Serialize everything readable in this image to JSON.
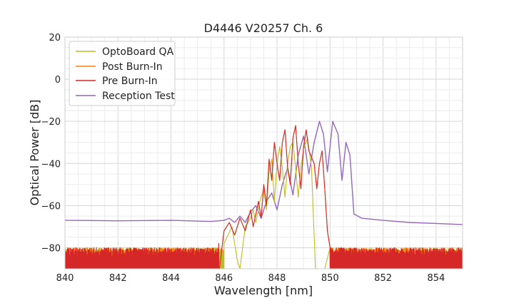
{
  "chart_data": {
    "type": "line",
    "title": "D4446 V20257 Ch. 6",
    "xlabel": "Wavelength [nm]",
    "ylabel": "Optical Power [dB]",
    "xlim": [
      840,
      855
    ],
    "ylim": [
      -90,
      20
    ],
    "xticks": [
      840,
      842,
      844,
      846,
      848,
      850,
      852,
      854
    ],
    "yticks": [
      -80,
      -60,
      -40,
      -20,
      0,
      20
    ],
    "xtick_labels": [
      "840",
      "842",
      "844",
      "846",
      "848",
      "850",
      "852",
      "854"
    ],
    "ytick_labels": [
      "−80",
      "−60",
      "−40",
      "−20",
      "0",
      "20"
    ],
    "grid": true,
    "legend_position": "top-left",
    "series": [
      {
        "name": "OptoBoard QA",
        "color": "#bcbd22",
        "noise_floor_level": -80,
        "points": [
          [
            846.0,
            -78
          ],
          [
            846.3,
            -70
          ],
          [
            846.5,
            -86
          ],
          [
            846.6,
            -90
          ],
          [
            846.8,
            -70
          ],
          [
            847.0,
            -66
          ],
          [
            847.1,
            -62
          ],
          [
            847.2,
            -68
          ],
          [
            847.35,
            -58
          ],
          [
            847.5,
            -52
          ],
          [
            847.6,
            -62
          ],
          [
            847.7,
            -44
          ],
          [
            847.8,
            -38
          ],
          [
            847.9,
            -58
          ],
          [
            848.0,
            -40
          ],
          [
            848.1,
            -32
          ],
          [
            848.2,
            -42
          ],
          [
            848.3,
            -56
          ],
          [
            848.4,
            -40
          ],
          [
            848.5,
            -32
          ],
          [
            848.6,
            -30
          ],
          [
            848.7,
            -42
          ],
          [
            848.8,
            -56
          ],
          [
            848.9,
            -42
          ],
          [
            849.0,
            -33
          ],
          [
            849.15,
            -28
          ],
          [
            849.3,
            -42
          ],
          [
            849.45,
            -90
          ],
          [
            849.8,
            -90
          ],
          [
            850.0,
            -80
          ]
        ]
      },
      {
        "name": "Post Burn-In",
        "color": "#ff7f0e",
        "noise_floor_level": -80,
        "points": [
          [
            845.8,
            -78
          ],
          [
            846.0,
            -72
          ],
          [
            846.2,
            -68
          ],
          [
            846.4,
            -74
          ],
          [
            846.6,
            -66
          ],
          [
            846.8,
            -72
          ],
          [
            847.0,
            -62
          ],
          [
            847.1,
            -70
          ],
          [
            847.3,
            -58
          ],
          [
            847.4,
            -66
          ],
          [
            847.5,
            -50
          ],
          [
            847.6,
            -60
          ],
          [
            847.7,
            -38
          ],
          [
            847.8,
            -48
          ],
          [
            847.9,
            -30
          ],
          [
            848.0,
            -40
          ],
          [
            848.1,
            -48
          ],
          [
            848.2,
            -30
          ],
          [
            848.3,
            -24
          ],
          [
            848.4,
            -42
          ],
          [
            848.5,
            -50
          ],
          [
            848.6,
            -28
          ],
          [
            848.7,
            -22
          ],
          [
            848.8,
            -40
          ],
          [
            848.9,
            -52
          ],
          [
            849.0,
            -32
          ],
          [
            849.1,
            -24
          ],
          [
            849.2,
            -34
          ],
          [
            849.4,
            -40
          ],
          [
            849.5,
            -52
          ],
          [
            849.6,
            -40
          ],
          [
            849.7,
            -34
          ],
          [
            849.8,
            -52
          ],
          [
            849.9,
            -72
          ],
          [
            850.0,
            -80
          ]
        ]
      },
      {
        "name": "Pre Burn-In",
        "color": "#d62728",
        "noise_floor_level": -80,
        "points": [
          [
            845.8,
            -78
          ],
          [
            846.0,
            -72
          ],
          [
            846.2,
            -68
          ],
          [
            846.4,
            -74
          ],
          [
            846.6,
            -66
          ],
          [
            846.8,
            -72
          ],
          [
            847.0,
            -62
          ],
          [
            847.1,
            -70
          ],
          [
            847.3,
            -58
          ],
          [
            847.4,
            -66
          ],
          [
            847.5,
            -50
          ],
          [
            847.6,
            -60
          ],
          [
            847.7,
            -38
          ],
          [
            847.8,
            -48
          ],
          [
            847.9,
            -30
          ],
          [
            848.0,
            -40
          ],
          [
            848.1,
            -48
          ],
          [
            848.2,
            -30
          ],
          [
            848.3,
            -24
          ],
          [
            848.4,
            -42
          ],
          [
            848.5,
            -50
          ],
          [
            848.6,
            -28
          ],
          [
            848.7,
            -22
          ],
          [
            848.8,
            -40
          ],
          [
            848.9,
            -52
          ],
          [
            849.0,
            -32
          ],
          [
            849.1,
            -24
          ],
          [
            849.2,
            -34
          ],
          [
            849.4,
            -40
          ],
          [
            849.5,
            -52
          ],
          [
            849.6,
            -40
          ],
          [
            849.7,
            -34
          ],
          [
            849.8,
            -52
          ],
          [
            849.9,
            -72
          ],
          [
            850.0,
            -80
          ]
        ]
      },
      {
        "name": "Reception Test",
        "color": "#9467bd",
        "points": [
          [
            840,
            -67
          ],
          [
            842,
            -67.2
          ],
          [
            844,
            -67
          ],
          [
            845.5,
            -67.5
          ],
          [
            846.0,
            -67
          ],
          [
            846.2,
            -66
          ],
          [
            846.4,
            -68
          ],
          [
            846.6,
            -65
          ],
          [
            846.8,
            -68
          ],
          [
            847.0,
            -63
          ],
          [
            847.2,
            -60
          ],
          [
            847.4,
            -66
          ],
          [
            847.6,
            -58
          ],
          [
            847.8,
            -54
          ],
          [
            848.0,
            -62
          ],
          [
            848.2,
            -50
          ],
          [
            848.4,
            -42
          ],
          [
            848.6,
            -55
          ],
          [
            848.8,
            -36
          ],
          [
            849.0,
            -27
          ],
          [
            849.2,
            -45
          ],
          [
            849.4,
            -30
          ],
          [
            849.6,
            -20
          ],
          [
            849.75,
            -26
          ],
          [
            849.9,
            -44
          ],
          [
            850.1,
            -20
          ],
          [
            850.3,
            -26
          ],
          [
            850.45,
            -48
          ],
          [
            850.6,
            -30
          ],
          [
            850.75,
            -36
          ],
          [
            850.9,
            -64
          ],
          [
            851.2,
            -66
          ],
          [
            852,
            -67
          ],
          [
            853,
            -68
          ],
          [
            854,
            -68.5
          ],
          [
            855,
            -69
          ]
        ]
      }
    ]
  }
}
